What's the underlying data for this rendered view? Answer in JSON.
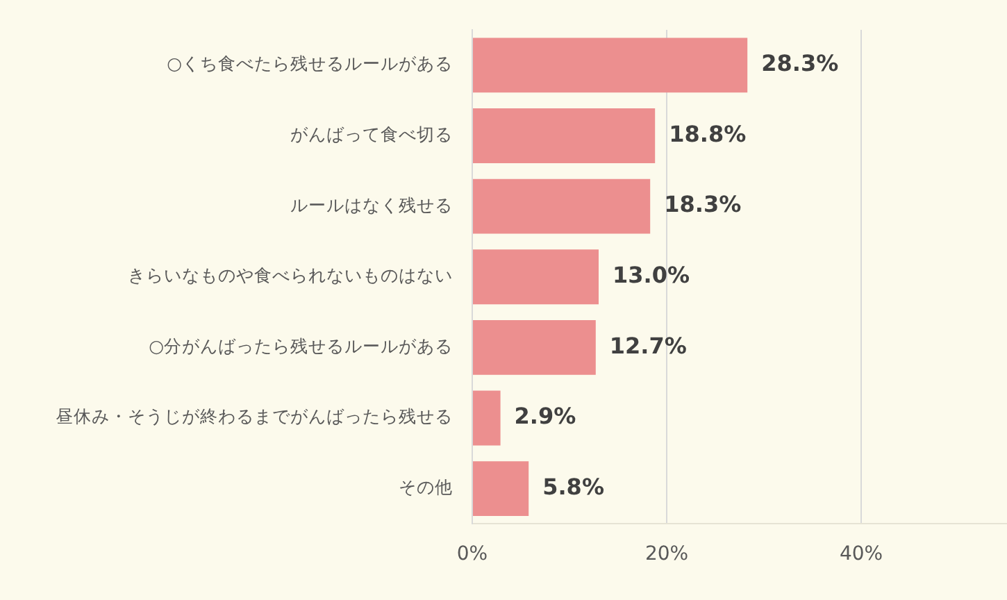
{
  "chart_data": {
    "type": "bar",
    "orientation": "horizontal",
    "categories": [
      "○くち食べたら残せるルールがある",
      "がんばって食べ切る",
      "ルールはなく残せる",
      "きらいなものや食べられないものはない",
      "○分がんばったら残せるルールがある",
      "昼休み・そうじが終わるまでがんばったら残せる",
      "その他"
    ],
    "values": [
      28.3,
      18.8,
      18.3,
      13.0,
      12.7,
      2.9,
      5.8
    ],
    "value_labels": [
      "28.3%",
      "18.8%",
      "18.3%",
      "13.0%",
      "12.7%",
      "2.9%",
      "5.8%"
    ],
    "color": "#ec8f8f",
    "xlim": [
      0,
      55
    ],
    "xticks": [
      {
        "value": 0,
        "label": "0%"
      },
      {
        "value": 20,
        "label": "20%"
      },
      {
        "value": 40,
        "label": "40%"
      }
    ],
    "grid": "x",
    "legend": false
  }
}
